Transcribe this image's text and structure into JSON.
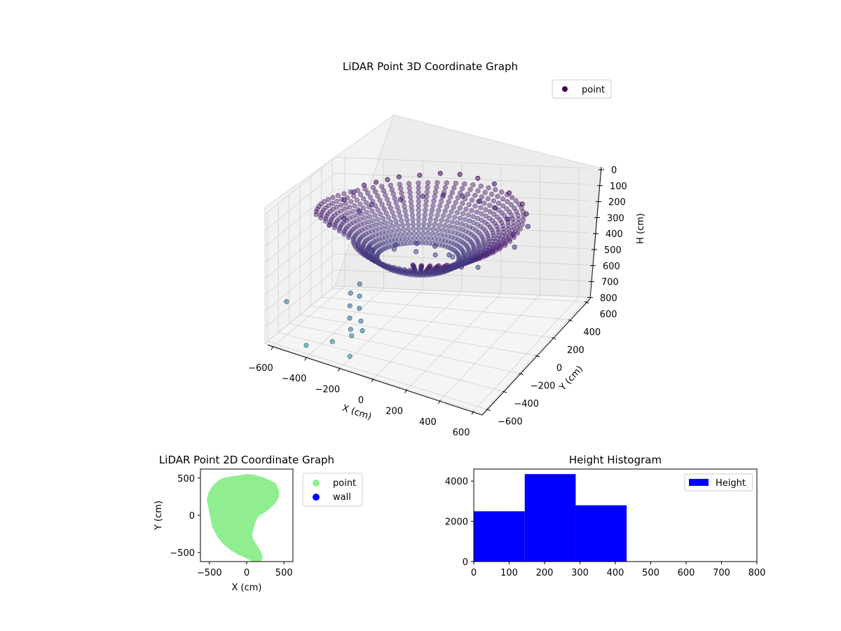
{
  "chart_data": [
    {
      "type": "scatter",
      "projection": "3d",
      "title": "LiDAR Point 3D Coordinate Graph",
      "xlabel": "X (cm)",
      "ylabel": "Y (cm)",
      "zlabel": "H (cm)",
      "xlim": [
        -650,
        650
      ],
      "ylim": [
        -650,
        650
      ],
      "zlim": [
        800,
        0
      ],
      "z_inverted": true,
      "xticks": [
        "−600",
        "−400",
        "−200",
        "0",
        "200",
        "400",
        "600"
      ],
      "yticks": [
        "−600",
        "−400",
        "−200",
        "0",
        "200",
        "400",
        "600"
      ],
      "zticks": [
        "0",
        "100",
        "200",
        "300",
        "400",
        "500",
        "600",
        "700",
        "800"
      ],
      "legend": {
        "placement": "top-right",
        "entries": [
          {
            "label": "point",
            "color": "#440154"
          }
        ]
      },
      "series": [
        {
          "name": "point",
          "colormap": "viridis (by height)",
          "x": [
            -500,
            -480,
            -450,
            -400,
            -350,
            -300,
            -200,
            -100,
            0,
            100,
            200,
            300,
            400,
            450,
            500,
            -520,
            -470,
            -420,
            -380,
            -250,
            -150,
            -50,
            50,
            150,
            250,
            350,
            420,
            470,
            -300,
            -200,
            -100,
            0,
            100,
            200,
            300,
            -250,
            -150,
            -50,
            50,
            150,
            250,
            -320,
            -300,
            -280,
            -260,
            -240,
            -300,
            -280,
            -260,
            -230,
            -200,
            -650,
            -420,
            -180,
            -330
          ],
          "y": [
            300,
            400,
            480,
            520,
            550,
            580,
            600,
            620,
            620,
            600,
            560,
            500,
            420,
            350,
            250,
            100,
            200,
            300,
            380,
            450,
            500,
            520,
            520,
            490,
            440,
            360,
            250,
            150,
            100,
            200,
            250,
            260,
            240,
            180,
            80,
            0,
            80,
            120,
            120,
            60,
            -20,
            -150,
            -220,
            -280,
            -320,
            -360,
            -60,
            -120,
            -180,
            -240,
            -300,
            -250,
            -600,
            -550,
            -420
          ],
          "h": [
            150,
            130,
            110,
            100,
            90,
            80,
            70,
            60,
            60,
            70,
            80,
            100,
            120,
            140,
            160,
            250,
            230,
            210,
            190,
            170,
            160,
            150,
            150,
            160,
            170,
            190,
            220,
            240,
            350,
            380,
            400,
            410,
            400,
            380,
            360,
            320,
            300,
            290,
            290,
            300,
            320,
            550,
            600,
            650,
            700,
            720,
            520,
            570,
            620,
            670,
            700,
            650,
            750,
            760,
            760
          ]
        }
      ]
    },
    {
      "type": "scatter",
      "title": "LiDAR Point 2D Coordinate Graph",
      "xlabel": "X (cm)",
      "ylabel": "Y (cm)",
      "xlim": [
        -620,
        620
      ],
      "ylim": [
        -620,
        620
      ],
      "xticks": [
        "−500",
        "0",
        "500"
      ],
      "yticks": [
        "500",
        "0",
        "−500"
      ],
      "legend": {
        "placement": "outside-right",
        "entries": [
          {
            "label": "point",
            "color": "#90ee90"
          },
          {
            "label": "wall",
            "color": "#0000ff"
          }
        ]
      },
      "series": [
        {
          "name": "point",
          "color": "#90ee90",
          "outline_x": [
            -100,
            0,
            100,
            200,
            300,
            380,
            420,
            420,
            380,
            300,
            220,
            150,
            120,
            100,
            80,
            60,
            70,
            120,
            150,
            180,
            200,
            180,
            150,
            100,
            0,
            -100,
            -200,
            -300,
            -380,
            -450,
            -480,
            -500,
            -520,
            -500,
            -450,
            -400,
            -350,
            -300,
            -250,
            -200,
            -150
          ],
          "outline_y": [
            520,
            540,
            530,
            500,
            460,
            420,
            320,
            250,
            180,
            100,
            40,
            0,
            -50,
            -100,
            -180,
            -250,
            -320,
            -400,
            -450,
            -500,
            -560,
            -620,
            -620,
            -620,
            -560,
            -520,
            -460,
            -380,
            -280,
            -150,
            0,
            100,
            200,
            300,
            380,
            430,
            470,
            490,
            500,
            510,
            515
          ]
        }
      ]
    },
    {
      "type": "bar",
      "histogram": true,
      "title": "Height Histogram",
      "xlim": [
        0,
        800
      ],
      "ylim": [
        0,
        4600
      ],
      "xticks": [
        "0",
        "100",
        "200",
        "300",
        "400",
        "500",
        "600",
        "700",
        "800"
      ],
      "yticks": [
        "0",
        "2000",
        "4000"
      ],
      "legend": {
        "placement": "top-right",
        "entries": [
          {
            "label": "Height",
            "color": "#0000ff"
          }
        ]
      },
      "bins": [
        [
          0,
          144,
          2500
        ],
        [
          144,
          288,
          4350
        ],
        [
          288,
          432,
          2800
        ]
      ],
      "color": "#0000ff"
    }
  ]
}
